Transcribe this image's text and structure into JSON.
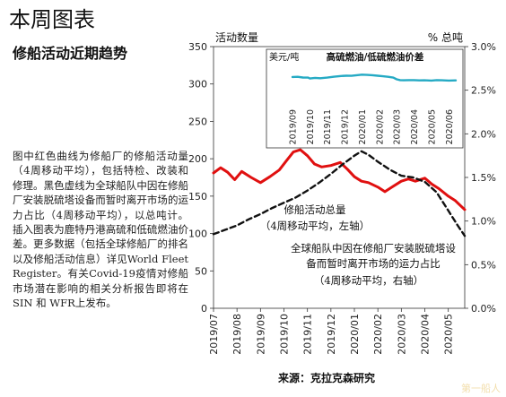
{
  "page": {
    "title": "本周图表",
    "subtitle": "修船活动近期趋势",
    "description": "图中红色曲线为修船厂的修船活动量（4周移动平均），包括特检、改装和修理。黑色虚线为全球船队中因在修船厂安装脱硫塔设备而暂时离开市场的运力占比（4周移动平均），以总吨计。插入图表为鹿特丹港高硫和低硫燃油价差。更多数据（包括全球修船厂的排名以及修船活动信息）详见World Fleet Register。有关Covid-19疫情对修船市场潜在影响的相关分析报告即将在SIN 和 WFR上发布。",
    "source": "来源：克拉克森研究",
    "watermark": "第一船人"
  },
  "chart_data": [
    {
      "type": "line",
      "left_axis_label": "活动数量",
      "right_axis_label": "% 总吨",
      "left_ylim": [
        0,
        350
      ],
      "left_ticks": [
        0,
        50,
        100,
        150,
        200,
        250,
        300,
        350
      ],
      "right_ylim": [
        0,
        3.0
      ],
      "right_ticks": [
        "0.0%",
        "0.5%",
        "1.0%",
        "1.5%",
        "2.0%",
        "2.5%",
        "3.0%"
      ],
      "x_ticks": [
        "2019/07",
        "2019/08",
        "2019/09",
        "2019/10",
        "2019/11",
        "2019/12",
        "2020/01",
        "2020/02",
        "2020/03",
        "2020/04",
        "2020/05"
      ],
      "x_range": [
        0,
        10.7
      ],
      "grid": false,
      "series": [
        {
          "name": "修船活动总量（4周移动平均，左轴）",
          "axis": "left",
          "color": "#e01010",
          "style": "solid",
          "points": [
            [
              0,
              181
            ],
            [
              0.3,
              188
            ],
            [
              0.6,
              182
            ],
            [
              0.9,
              172
            ],
            [
              1.2,
              183
            ],
            [
              1.6,
              175
            ],
            [
              2.0,
              168
            ],
            [
              2.4,
              176
            ],
            [
              2.8,
              185
            ],
            [
              3.1,
              197
            ],
            [
              3.4,
              209
            ],
            [
              3.7,
              212
            ],
            [
              4.0,
              204
            ],
            [
              4.3,
              193
            ],
            [
              4.6,
              189
            ],
            [
              5.0,
              191
            ],
            [
              5.4,
              195
            ],
            [
              5.7,
              186
            ],
            [
              6.0,
              176
            ],
            [
              6.3,
              170
            ],
            [
              6.6,
              168
            ],
            [
              7.0,
              162
            ],
            [
              7.3,
              156
            ],
            [
              7.6,
              162
            ],
            [
              8.0,
              170
            ],
            [
              8.3,
              173
            ],
            [
              8.6,
              170
            ],
            [
              9.0,
              174
            ],
            [
              9.3,
              166
            ],
            [
              9.6,
              160
            ],
            [
              10.0,
              150
            ],
            [
              10.3,
              144
            ],
            [
              10.7,
              132
            ]
          ]
        },
        {
          "name": "全球船队中因在修船厂安装脱硫塔设备而暂时离开市场的运力占比（4周移动平均，右轴）",
          "axis": "right",
          "color": "#111111",
          "style": "dashed",
          "points": [
            [
              0,
              0.85
            ],
            [
              0.5,
              0.9
            ],
            [
              1.0,
              0.95
            ],
            [
              1.5,
              1.02
            ],
            [
              2.0,
              1.08
            ],
            [
              2.5,
              1.15
            ],
            [
              3.0,
              1.21
            ],
            [
              3.5,
              1.27
            ],
            [
              4.0,
              1.35
            ],
            [
              4.5,
              1.44
            ],
            [
              5.0,
              1.54
            ],
            [
              5.5,
              1.65
            ],
            [
              6.0,
              1.75
            ],
            [
              6.3,
              1.8
            ],
            [
              6.6,
              1.76
            ],
            [
              7.0,
              1.68
            ],
            [
              7.5,
              1.59
            ],
            [
              8.0,
              1.52
            ],
            [
              8.5,
              1.5
            ],
            [
              9.0,
              1.45
            ],
            [
              9.5,
              1.33
            ],
            [
              10.0,
              1.12
            ],
            [
              10.4,
              0.95
            ],
            [
              10.7,
              0.83
            ]
          ]
        }
      ],
      "annotations": [
        {
          "text": "修船活动总量",
          "ref": "series-0"
        },
        {
          "text": "（4周移动平均，左轴）",
          "ref": "series-0"
        },
        {
          "text": "全球船队中因在修船厂安装脱硫塔设",
          "ref": "series-1"
        },
        {
          "text": "备而暂时离开市场的运力占比",
          "ref": "series-1"
        },
        {
          "text": "（4周移动平均，右轴）",
          "ref": "series-1"
        }
      ]
    },
    {
      "type": "line",
      "title": "高硫燃油/低硫燃油价差",
      "ylabel": "美元/吨",
      "ylim": [
        0,
        300
      ],
      "y_ticks": [
        0,
        50,
        100,
        150,
        200,
        250,
        300
      ],
      "x_ticks": [
        "2019/09",
        "2019/10",
        "2019/11",
        "2019/12",
        "2020/01",
        "2020/02",
        "2020/03",
        "2020/04",
        "2020/05",
        "2020/06"
      ],
      "x_range": [
        0,
        9.4
      ],
      "series": [
        {
          "color": "#25aac4",
          "points": [
            [
              0,
              203
            ],
            [
              0.3,
              204
            ],
            [
              0.6,
              199
            ],
            [
              0.9,
              198
            ],
            [
              1.0,
              192
            ],
            [
              1.3,
              196
            ],
            [
              1.6,
              194
            ],
            [
              2.0,
              198
            ],
            [
              2.4,
              205
            ],
            [
              2.8,
              210
            ],
            [
              3.1,
              212
            ],
            [
              3.4,
              211
            ],
            [
              3.7,
              216
            ],
            [
              4.0,
              220
            ],
            [
              4.3,
              218
            ],
            [
              4.6,
              216
            ],
            [
              4.9,
              212
            ],
            [
              5.2,
              208
            ],
            [
              5.5,
              204
            ],
            [
              5.8,
              198
            ],
            [
              6.0,
              186
            ],
            [
              6.2,
              180
            ],
            [
              6.4,
              179
            ],
            [
              6.7,
              180
            ],
            [
              7.0,
              180
            ],
            [
              7.3,
              178
            ],
            [
              7.6,
              179
            ],
            [
              8.0,
              177
            ],
            [
              8.3,
              180
            ],
            [
              8.6,
              179
            ],
            [
              9.0,
              177
            ],
            [
              9.4,
              178
            ]
          ]
        }
      ]
    }
  ]
}
